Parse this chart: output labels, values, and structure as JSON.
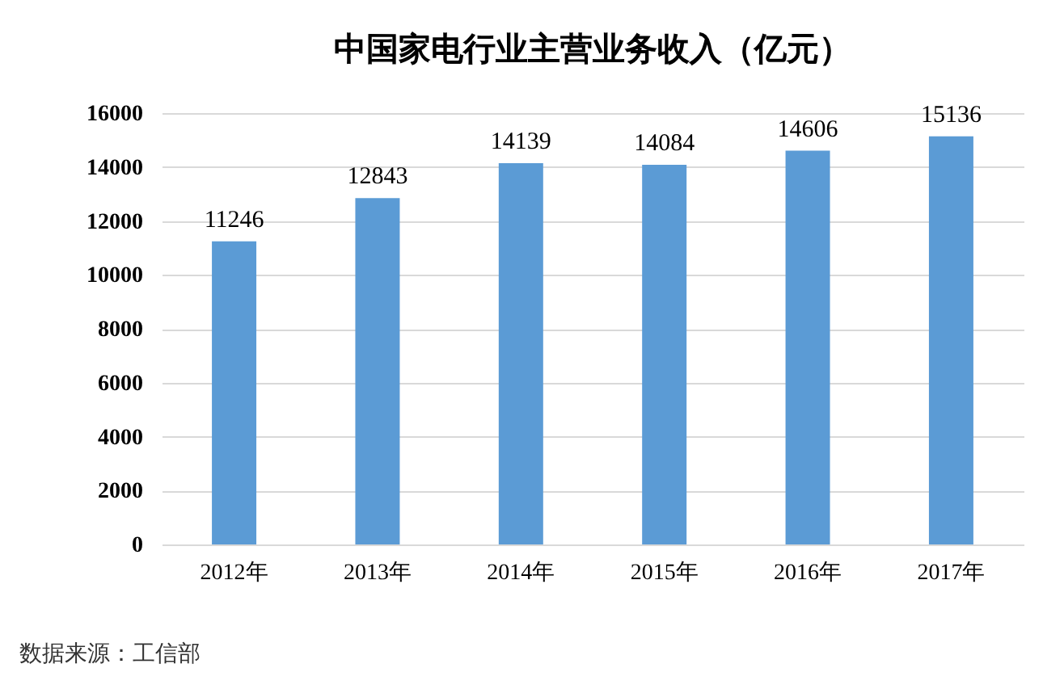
{
  "chart_data": {
    "type": "bar",
    "title": "中国家电行业主营业务收入（亿元）",
    "categories": [
      "2012年",
      "2013年",
      "2014年",
      "2015年",
      "2016年",
      "2017年"
    ],
    "values": [
      11246,
      12843,
      14139,
      14084,
      14606,
      15136
    ],
    "color": "#5b9bd5",
    "ylim": [
      0,
      16000
    ],
    "yticks": [
      0,
      2000,
      4000,
      6000,
      8000,
      10000,
      12000,
      14000,
      16000
    ],
    "grid": "y",
    "data_labels": true,
    "annotations": [
      "数据来源：工信部"
    ]
  }
}
